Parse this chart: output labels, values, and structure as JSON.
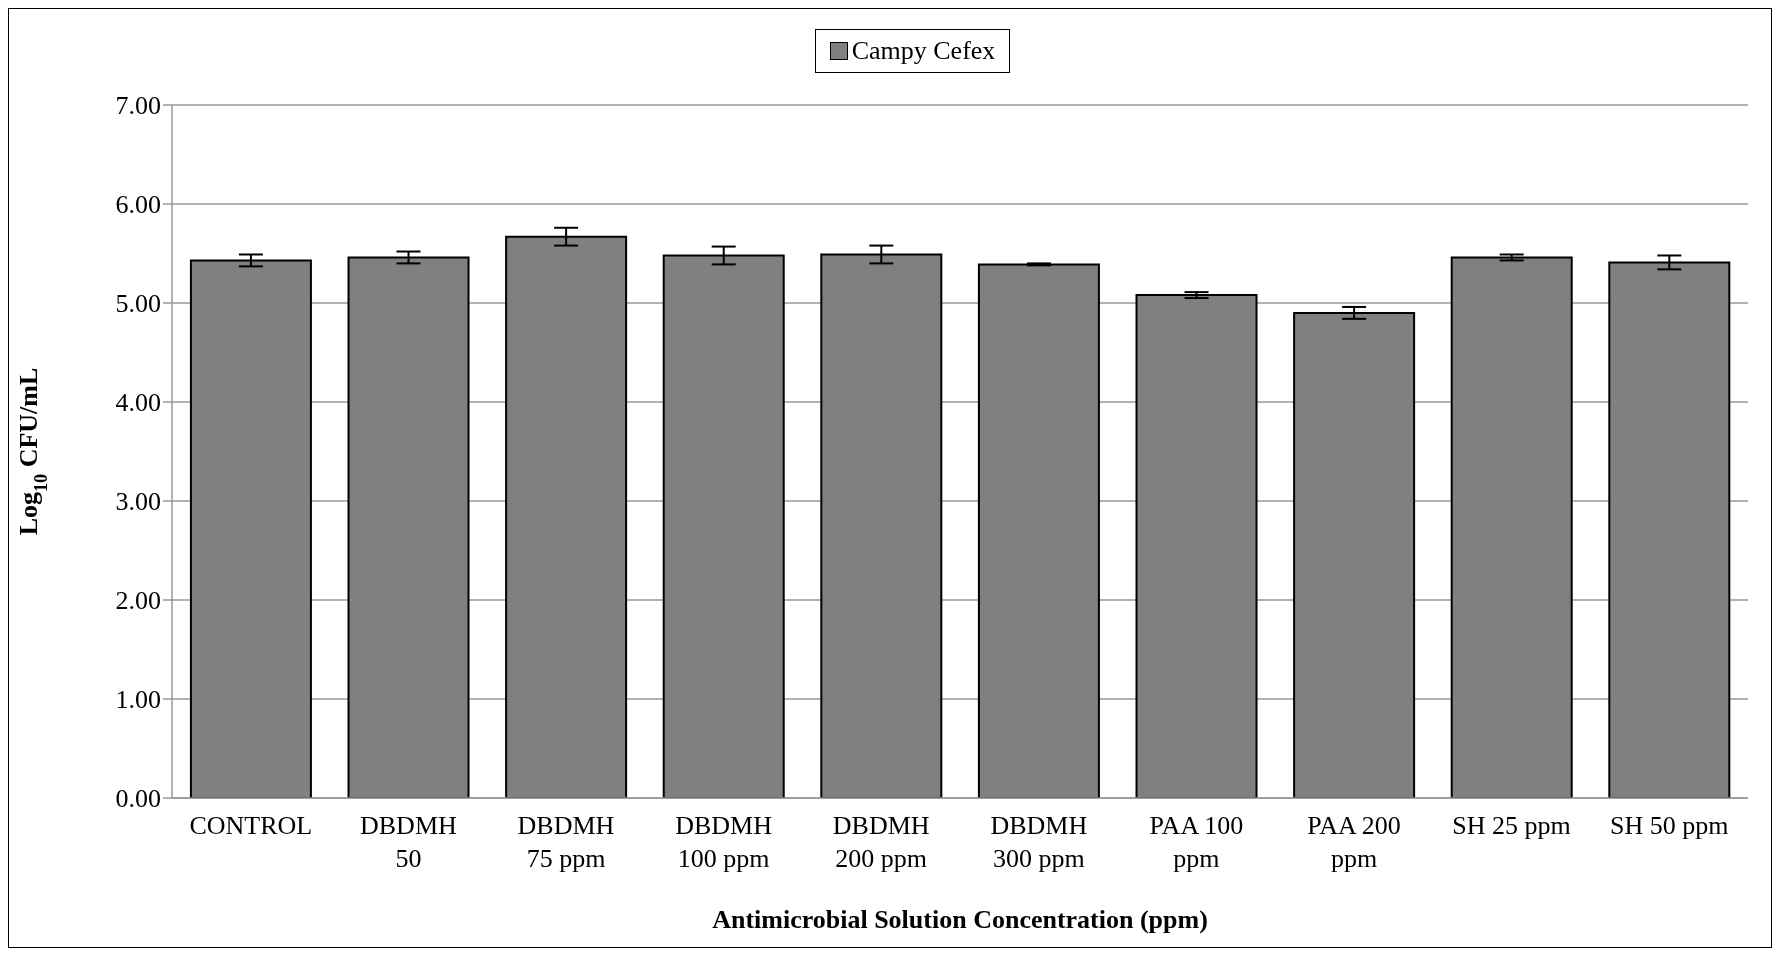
{
  "chart_data": {
    "type": "bar",
    "xlabel": "Antimicrobial Solution Concentration (ppm)",
    "ylabel": "Log$_{10}$ CFU/mL",
    "categories": [
      "CONTROL",
      "DBDMH 50",
      "DBDMH 75 ppm",
      "DBDMH 100 ppm",
      "DBDMH 200 ppm",
      "DBDMH 300 ppm",
      "PAA 100 ppm",
      "PAA 200 ppm",
      "SH 25 ppm",
      "SH 50 ppm"
    ],
    "series": [
      {
        "name": "Campy Cefex",
        "color": "#808080",
        "values": [
          5.43,
          5.46,
          5.67,
          5.48,
          5.49,
          5.39,
          5.08,
          4.9,
          5.46,
          5.41
        ],
        "errors": [
          0.06,
          0.06,
          0.09,
          0.09,
          0.09,
          0.01,
          0.03,
          0.06,
          0.03,
          0.07
        ]
      }
    ],
    "ylim": [
      0,
      7
    ],
    "yticks": [
      {
        "value": 0,
        "label": "0.00"
      },
      {
        "value": 1,
        "label": "1.00"
      },
      {
        "value": 2,
        "label": "2.00"
      },
      {
        "value": 3,
        "label": "3.00"
      },
      {
        "value": 4,
        "label": "4.00"
      },
      {
        "value": 5,
        "label": "5.00"
      },
      {
        "value": 6,
        "label": "6.00"
      },
      {
        "value": 7,
        "label": "7.00"
      }
    ],
    "grid": "y",
    "legend": "top"
  }
}
